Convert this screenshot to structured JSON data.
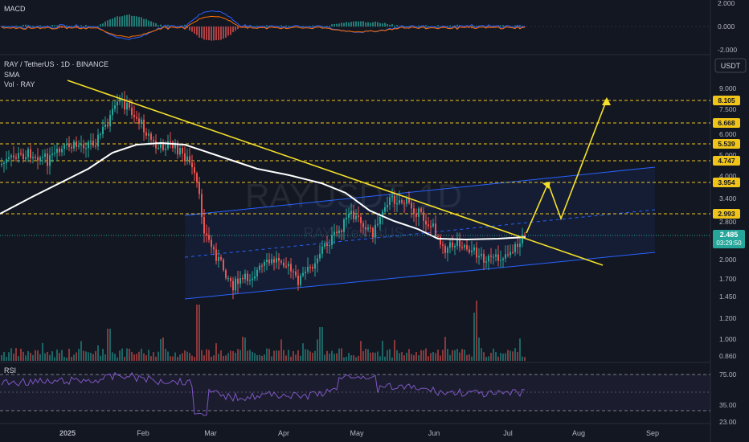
{
  "chart_data": {
    "type": "candlestick",
    "symbol": "RAY / TetherUS · 1D · BINANCE",
    "indicators": {
      "sma": "SMA",
      "volume": "Vol · RAY",
      "macd": "MACD",
      "rsi": "RSI"
    },
    "watermark": {
      "big": "RAYUSDT, 1D",
      "small": "RAY / TetherUS"
    },
    "currency_button": "USDT",
    "x_axis": {
      "labels": [
        "2025",
        "Feb",
        "Mar",
        "Apr",
        "May",
        "Jun",
        "Jul",
        "Aug",
        "Sep"
      ]
    },
    "price_axis": {
      "ticks": [
        "9.000",
        "7.500",
        "6.000",
        "5.000",
        "4.000",
        "3.400",
        "2.800",
        "2.000",
        "1.700",
        "1.450",
        "1.200",
        "1.000",
        "0.860"
      ]
    },
    "macd_axis": {
      "ticks": [
        "2.000",
        "0.000",
        "-2.000"
      ]
    },
    "rsi_axis": {
      "ticks": [
        "75.00",
        "35.00",
        "23.00"
      ]
    },
    "levels": [
      "8.105",
      "6.668",
      "5.539",
      "4.747",
      "3.954",
      "2.993"
    ],
    "current_price": "2.485",
    "countdown": "03:29:50",
    "colors": {
      "up": "#26a69a",
      "down": "#ef5350",
      "level": "#f0c419",
      "trend": "#f5e12a",
      "sma": "#ffffff",
      "channel": "#2962ff",
      "rsi": "#7e57c2"
    }
  }
}
